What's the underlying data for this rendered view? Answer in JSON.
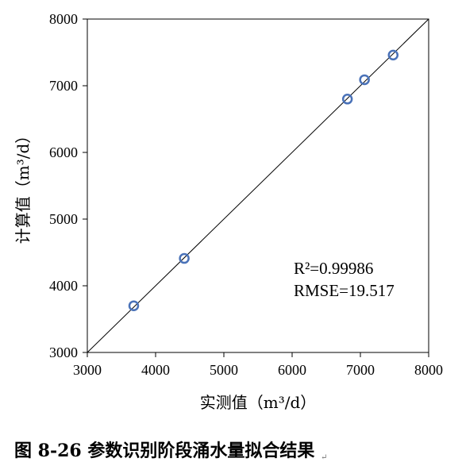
{
  "chart_data": {
    "type": "scatter",
    "title": "",
    "xlabel": "实测值（m³/d）",
    "ylabel": "计算值（m³/d）",
    "xlim": [
      3000,
      8000
    ],
    "ylim": [
      3000,
      8000
    ],
    "xticks": [
      "3000",
      "4000",
      "5000",
      "6000",
      "7000",
      "8000"
    ],
    "yticks": [
      "3000",
      "4000",
      "5000",
      "6000",
      "7000",
      "8000"
    ],
    "points": [
      {
        "x": 3680,
        "y": 3700
      },
      {
        "x": 4420,
        "y": 4410
      },
      {
        "x": 6810,
        "y": 6800
      },
      {
        "x": 7060,
        "y": 7090
      },
      {
        "x": 7480,
        "y": 7460
      }
    ],
    "reference_line": {
      "from": [
        3000,
        3000
      ],
      "to": [
        8000,
        8000
      ]
    },
    "annotations": [
      "R²=0.99986",
      "RMSE=19.517"
    ],
    "marker_color": "#4a72b8",
    "grid": false,
    "legend": "none"
  },
  "caption": {
    "text": "图  8-26 参数识别阶段涌水量拟合结果",
    "mark": "↵"
  }
}
